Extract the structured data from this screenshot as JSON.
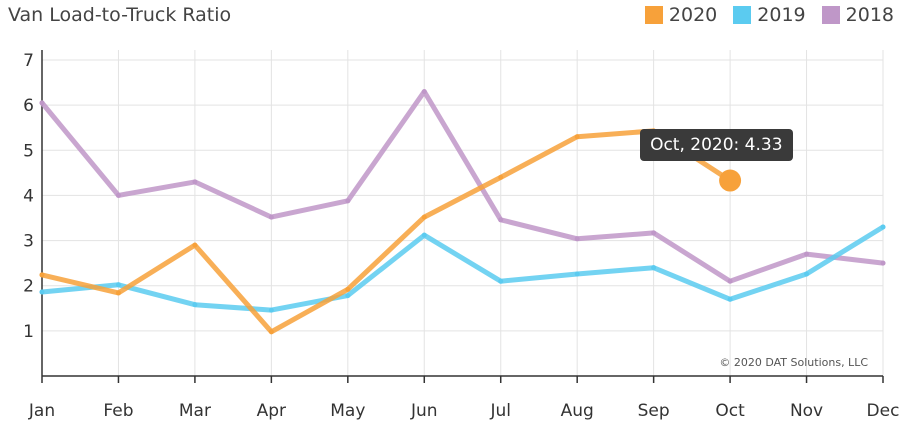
{
  "chart_data": {
    "type": "line",
    "title": "Van Load-to-Truck Ratio",
    "categories": [
      "Jan",
      "Feb",
      "Mar",
      "Apr",
      "May",
      "Jun",
      "Jul",
      "Aug",
      "Sep",
      "Oct",
      "Nov",
      "Dec"
    ],
    "ylim": [
      0,
      7
    ],
    "yticks": [
      "1",
      "2",
      "3",
      "4",
      "5",
      "6",
      "7"
    ],
    "grid": true,
    "legend_position": "top-right",
    "series": [
      {
        "name": "2020",
        "color": "#f7a13a",
        "values": [
          2.24,
          1.84,
          2.9,
          0.98,
          1.92,
          3.52,
          4.4,
          5.3,
          5.43,
          4.33,
          null,
          null
        ]
      },
      {
        "name": "2019",
        "color": "#5bcbf0",
        "values": [
          1.86,
          2.02,
          1.58,
          1.46,
          1.78,
          3.12,
          2.1,
          2.26,
          2.4,
          1.7,
          2.26,
          3.3
        ]
      },
      {
        "name": "2018",
        "color": "#bf97c8",
        "values": [
          6.05,
          4.0,
          4.3,
          3.52,
          3.88,
          6.3,
          3.46,
          3.04,
          3.17,
          2.1,
          2.7,
          2.5
        ]
      }
    ],
    "tooltip": {
      "text": "Oct, 2020: 4.33",
      "series": "2020",
      "category": "Oct",
      "value": 4.33
    },
    "credit": "© 2020 DAT Solutions, LLC"
  }
}
